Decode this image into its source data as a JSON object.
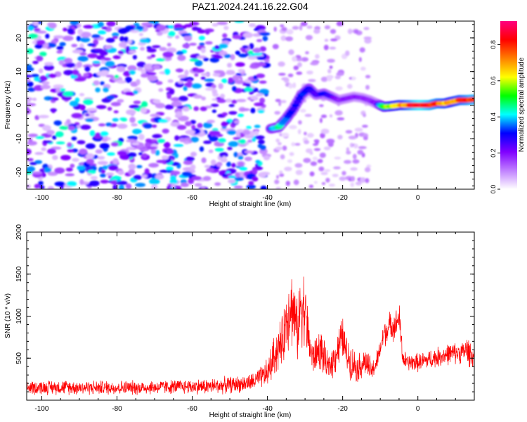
{
  "figure": {
    "title": "PAZ1.2024.241.16.22.G04"
  },
  "chart_data": [
    {
      "type": "heatmap",
      "title": "",
      "xlabel": "Height of straight line (km)",
      "ylabel": "Frequency (Hz)",
      "xlim": [
        -104,
        15
      ],
      "ylim": [
        -25,
        25
      ],
      "x_ticks": [
        -100,
        -80,
        -60,
        -40,
        -20,
        0
      ],
      "x_tick_labels": [
        "-100",
        "-80",
        "-60",
        "-40",
        "-20",
        "0"
      ],
      "y_ticks": [
        -20,
        -10,
        0,
        10,
        20
      ],
      "y_tick_labels": [
        "-20",
        "-10",
        "0",
        "10",
        "20"
      ],
      "colorbar": {
        "label": "Normalized spectral amplitude",
        "range": [
          0,
          0.93
        ],
        "ticks": [
          0,
          0.2,
          0.4,
          0.6,
          0.8
        ],
        "tick_labels": [
          "0.0",
          "0.2",
          "0.4",
          "0.6",
          "0.8"
        ],
        "colors": [
          "#ffffff",
          "#c080ff",
          "#8000ff",
          "#0000ff",
          "#00ffff",
          "#00ff00",
          "#ffff00",
          "#ff8000",
          "#ff0000",
          "#ff0080"
        ]
      },
      "ridge": {
        "x": [
          -39,
          -37,
          -35,
          -33,
          -31,
          -29,
          -27,
          -25,
          -23,
          -21,
          -19,
          -17,
          -15,
          -13,
          -11,
          -9,
          -7,
          -5,
          -3,
          -1,
          1,
          3,
          5,
          7,
          9,
          11,
          13,
          15
        ],
        "frequency": [
          -7,
          -6.5,
          -4,
          -1,
          3,
          5,
          3,
          3.5,
          2.5,
          1.5,
          2,
          2.5,
          2.2,
          1.5,
          0.5,
          -0.5,
          -0.3,
          0,
          0,
          0,
          0,
          0,
          0.5,
          0.5,
          1,
          1.5,
          1.5,
          1.7
        ],
        "amplitude": [
          0.35,
          0.45,
          0.35,
          0.3,
          0.3,
          0.35,
          0.25,
          0.3,
          0.25,
          0.2,
          0.2,
          0.2,
          0.18,
          0.2,
          0.2,
          0.55,
          0.6,
          0.7,
          0.75,
          0.85,
          0.9,
          0.85,
          0.8,
          0.75,
          0.7,
          0.75,
          0.8,
          0.85
        ]
      },
      "noise_region": {
        "x_range": [
          -104,
          -40
        ],
        "amplitude": [
          0.05,
          0.45
        ]
      }
    },
    {
      "type": "line",
      "title": "",
      "xlabel": "Height of straight line (km)",
      "ylabel": "SNR (10 * v/v)",
      "xlim": [
        -104,
        15
      ],
      "ylim": [
        0,
        2000
      ],
      "x_ticks": [
        -100,
        -80,
        -60,
        -40,
        -20,
        0
      ],
      "x_tick_labels": [
        "-100",
        "-80",
        "-60",
        "-40",
        "-20",
        "0"
      ],
      "y_ticks": [
        500,
        1000,
        1500,
        2000
      ],
      "y_tick_labels": [
        "500",
        "1000",
        "1500",
        "2000"
      ],
      "series": [
        {
          "name": "",
          "color": "#ff0000",
          "x": [
            -104,
            -95,
            -85,
            -75,
            -65,
            -55,
            -45,
            -42,
            -40,
            -38,
            -36,
            -35,
            -34,
            -33,
            -32,
            -31,
            -30,
            -29,
            -28,
            -27,
            -26,
            -25,
            -24,
            -22,
            -21,
            -20,
            -19,
            -18,
            -16,
            -15,
            -14,
            -13,
            -12,
            -11,
            -10,
            -9,
            -8,
            -7,
            -6,
            -5,
            -4,
            -3,
            -2,
            0,
            2,
            4,
            6,
            8,
            10,
            12,
            13,
            14,
            15
          ],
          "y_mean": [
            150,
            155,
            150,
            150,
            160,
            165,
            200,
            260,
            320,
            550,
            700,
            950,
            1150,
            1050,
            800,
            1200,
            1050,
            700,
            500,
            550,
            620,
            500,
            380,
            520,
            650,
            750,
            550,
            480,
            380,
            420,
            460,
            380,
            350,
            450,
            600,
            800,
            850,
            900,
            880,
            1000,
            500,
            450,
            450,
            450,
            470,
            500,
            520,
            550,
            560,
            570,
            600,
            550,
            500
          ],
          "y_spread": [
            100,
            100,
            100,
            100,
            100,
            110,
            120,
            150,
            200,
            300,
            350,
            450,
            600,
            500,
            400,
            600,
            500,
            350,
            250,
            250,
            300,
            250,
            200,
            250,
            300,
            300,
            250,
            250,
            200,
            200,
            200,
            200,
            150,
            150,
            150,
            200,
            200,
            200,
            200,
            220,
            150,
            120,
            120,
            130,
            130,
            140,
            140,
            150,
            150,
            150,
            200,
            180,
            150
          ]
        }
      ]
    }
  ]
}
